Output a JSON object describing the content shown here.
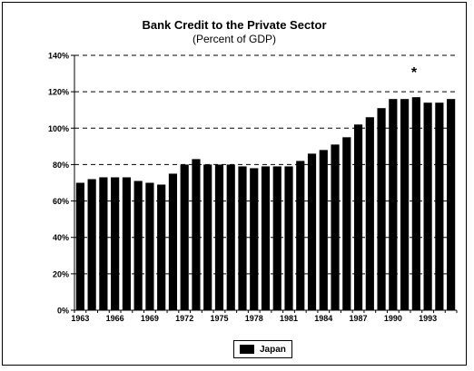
{
  "chart_data": {
    "type": "bar",
    "title": "Bank Credit to the Private Sector",
    "subtitle": "(Percent of GDP)",
    "xlabel": "",
    "ylabel": "",
    "ylim": [
      0,
      140
    ],
    "y_ticks": [
      "0%",
      "20%",
      "40%",
      "60%",
      "80%",
      "100%",
      "120%",
      "140%"
    ],
    "x_tick_labels": [
      "1963",
      "1966",
      "1969",
      "1972",
      "1975",
      "1978",
      "1981",
      "1984",
      "1987",
      "1990",
      "1993"
    ],
    "categories": [
      "1963",
      "1964",
      "1965",
      "1966",
      "1967",
      "1968",
      "1969",
      "1970",
      "1971",
      "1972",
      "1973",
      "1974",
      "1975",
      "1976",
      "1977",
      "1978",
      "1979",
      "1980",
      "1981",
      "1982",
      "1983",
      "1984",
      "1985",
      "1986",
      "1987",
      "1988",
      "1989",
      "1990",
      "1991",
      "1992",
      "1993",
      "1994",
      "1995"
    ],
    "series": [
      {
        "name": "Japan",
        "values": [
          70,
          72,
          73,
          73,
          73,
          71,
          70,
          69,
          75,
          80,
          83,
          80,
          80,
          80,
          79,
          78,
          79,
          79,
          79,
          82,
          86,
          88,
          91,
          95,
          102,
          106,
          111,
          116,
          116,
          117,
          114,
          114,
          116
        ]
      }
    ],
    "gridlines": "dashed horizontal",
    "annotation": "*",
    "legend_position": "bottom",
    "colors": {
      "bar": "#000000",
      "grid": "#000000"
    }
  }
}
